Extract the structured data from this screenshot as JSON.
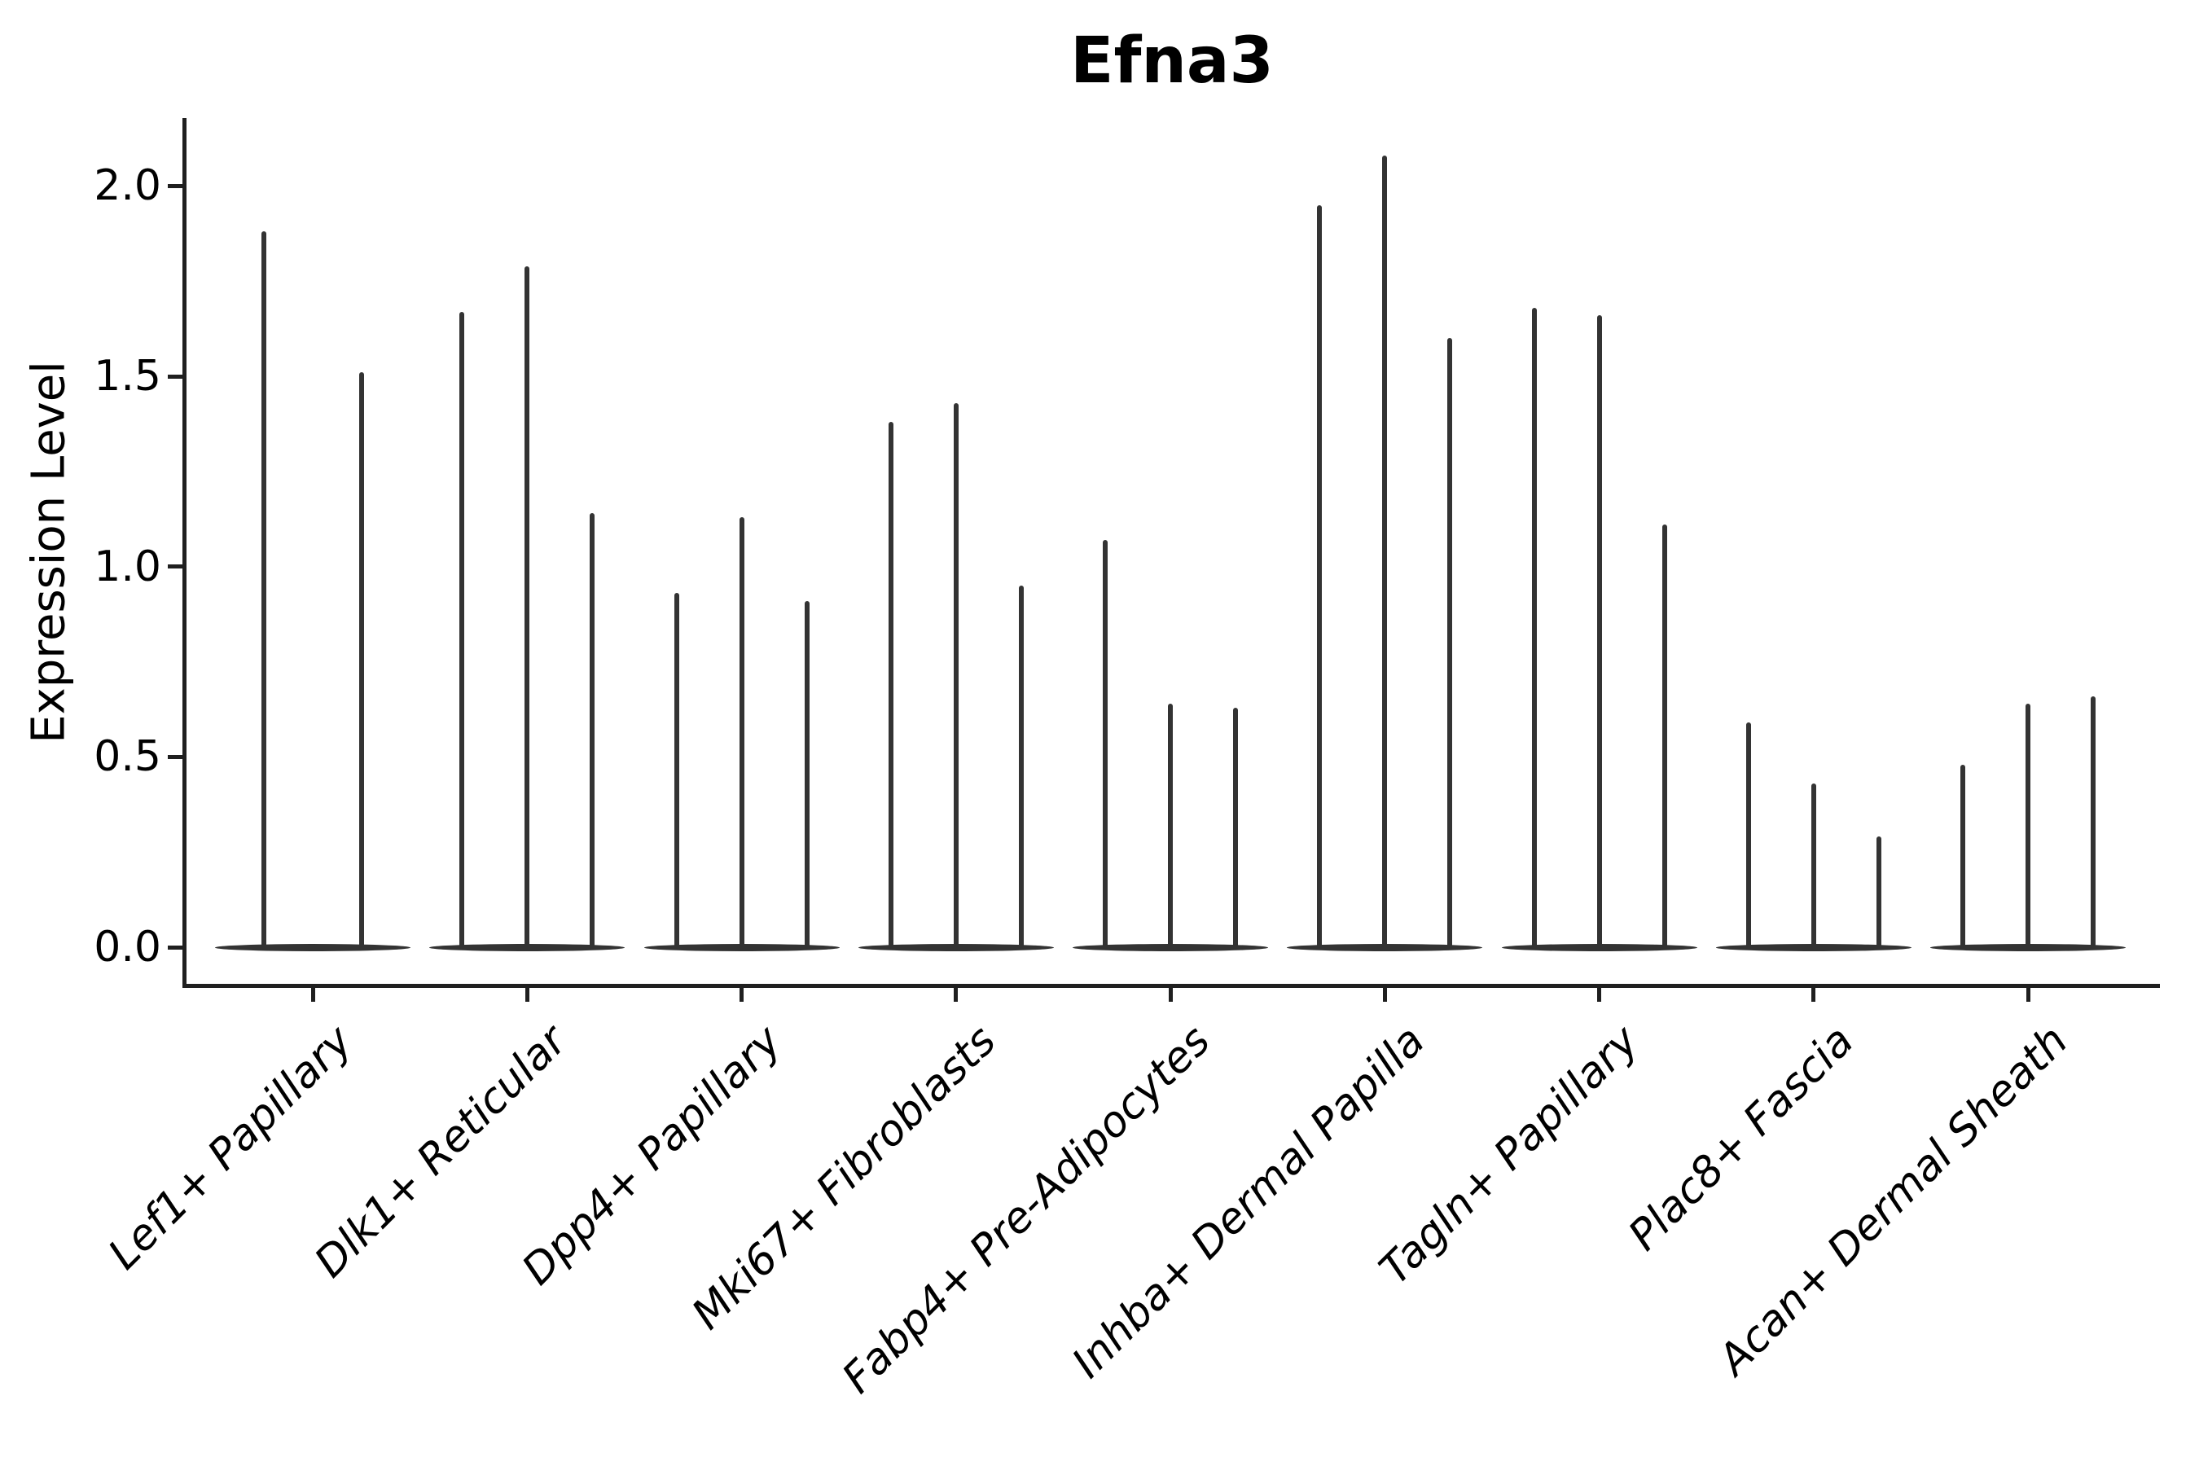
{
  "title": "Efna3",
  "y_axis": {
    "label": "Expression Level",
    "tick_labels": [
      "0.0",
      "0.5",
      "1.0",
      "1.5",
      "2.0"
    ]
  },
  "colors": {
    "violin_line": "#333333",
    "axis": "#1f1f1f",
    "text": "#000000",
    "background": "#ffffff"
  },
  "chart_data": {
    "type": "violin",
    "title": "Efna3",
    "xlabel": "",
    "ylabel": "Expression Level",
    "ylim": [
      -0.1,
      2.18
    ],
    "yticks": [
      0.0,
      0.5,
      1.0,
      1.5,
      2.0
    ],
    "ytick_labels": [
      "0.0",
      "0.5",
      "1.0",
      "1.5",
      "2.0"
    ],
    "grid": false,
    "legend": "none",
    "categories": [
      "Lef1+ Papillary",
      "Dlk1+ Reticular",
      "Dpp4+ Papillary",
      "Mki67+ Fibroblasts",
      "Fabp4+ Pre-Adipocytes",
      "Inhba+ Dermal Papilla",
      "Tagln+ Papillary",
      "Plac8+ Fascia",
      "Acan+ Dermal Sheath"
    ],
    "groups": [
      {
        "label": "Lef1+ Papillary",
        "violin_maxes": [
          1.88,
          1.51
        ]
      },
      {
        "label": "Dlk1+ Reticular",
        "violin_maxes": [
          1.67,
          1.79,
          1.14
        ]
      },
      {
        "label": "Dpp4+ Papillary",
        "violin_maxes": [
          0.93,
          1.13,
          0.91
        ]
      },
      {
        "label": "Mki67+ Fibroblasts",
        "violin_maxes": [
          1.38,
          1.43,
          0.95
        ]
      },
      {
        "label": "Fabp4+ Pre-Adipocytes",
        "violin_maxes": [
          1.07,
          0.64,
          0.63
        ]
      },
      {
        "label": "Inhba+ Dermal Papilla",
        "violin_maxes": [
          1.95,
          2.08,
          1.6
        ]
      },
      {
        "label": "Tagln+ Papillary",
        "violin_maxes": [
          1.68,
          1.66,
          1.11
        ]
      },
      {
        "label": "Plac8+ Fascia",
        "violin_maxes": [
          0.59,
          0.43,
          0.29
        ]
      },
      {
        "label": "Acan+ Dermal Sheath",
        "violin_maxes": [
          0.48,
          0.64,
          0.66
        ]
      }
    ],
    "description": "Violin plot of Efna3 expression; each cell-type group shows very thin spike-like violins concentrated at 0 with max values listed in violin_maxes."
  }
}
